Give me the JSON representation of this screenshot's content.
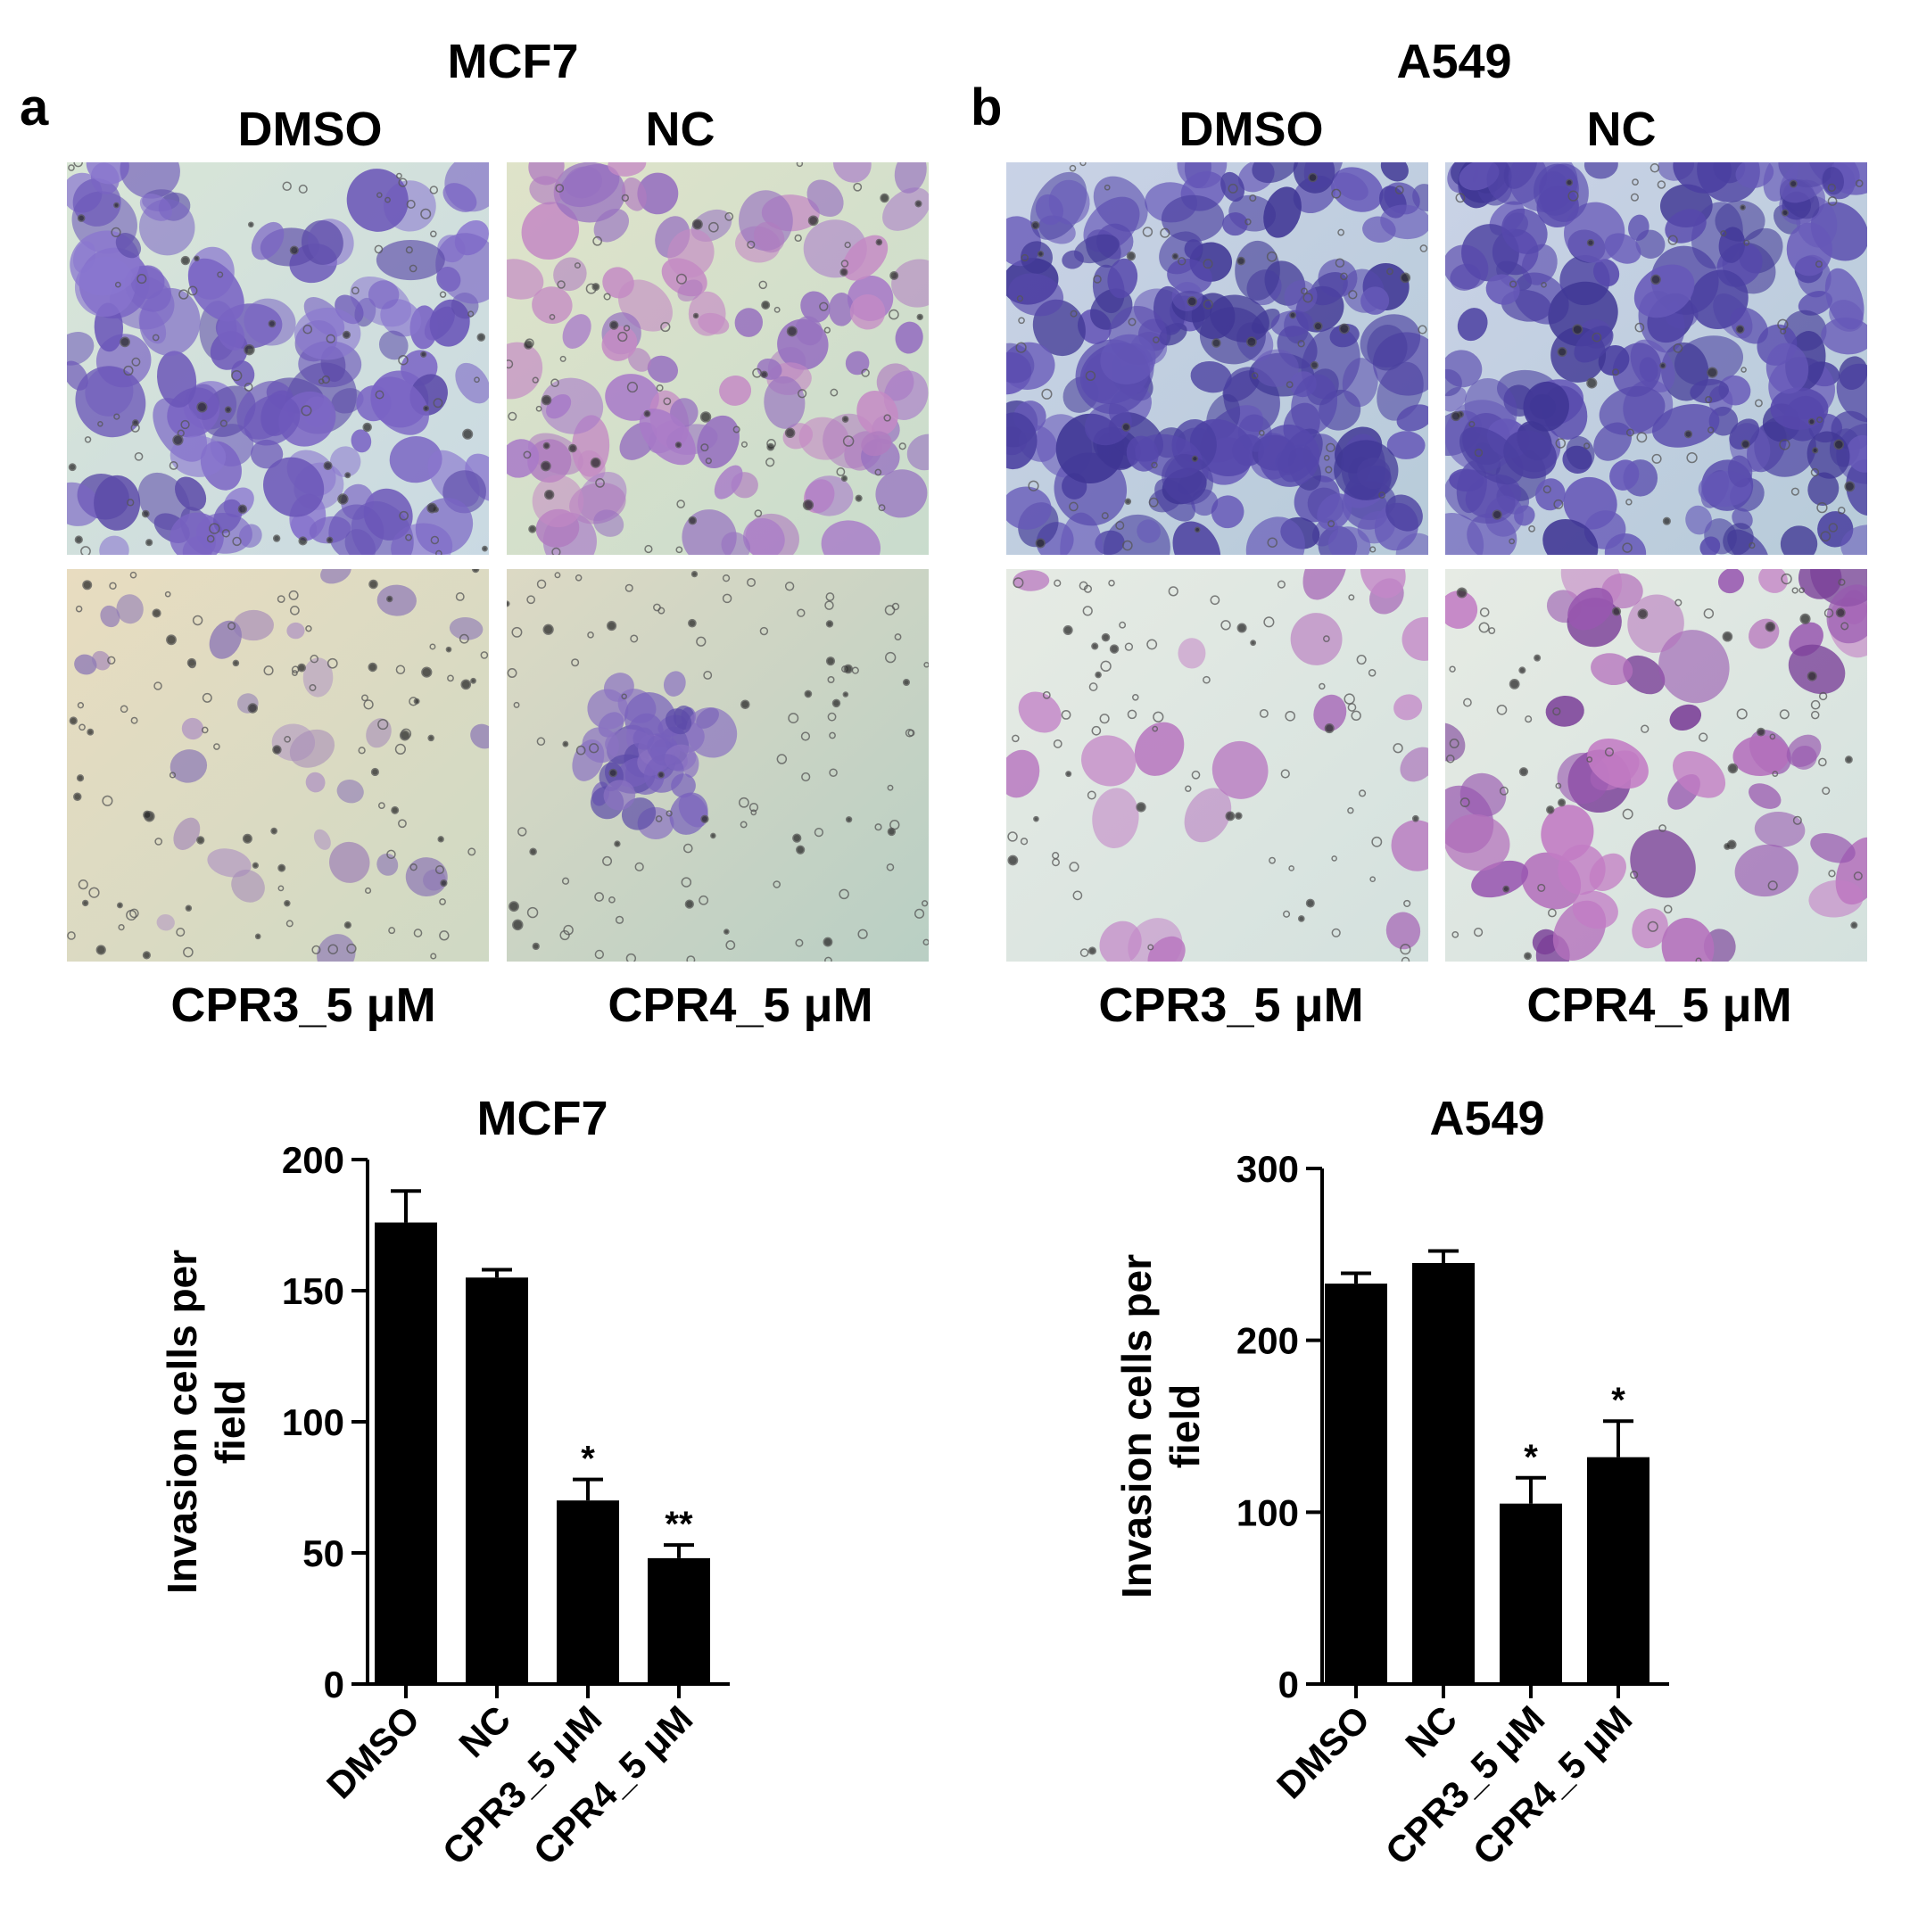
{
  "panel_a": {
    "letter": "a",
    "cell_line": "MCF7",
    "conditions_top": [
      "DMSO",
      "NC"
    ],
    "conditions_bottom": [
      "CPR3_5 μM",
      "CPR4_5 μM"
    ]
  },
  "panel_b": {
    "letter": "b",
    "cell_line": "A549",
    "conditions_top": [
      "DMSO",
      "NC"
    ],
    "conditions_bottom": [
      "CPR3_5 μM",
      "CPR4_5 μM"
    ]
  },
  "chart_data": [
    {
      "type": "bar",
      "title": "MCF7",
      "ylabel": "Invasion cells per field",
      "ylabel_lines": [
        "Invasion cells per",
        "field"
      ],
      "categories": [
        "DMSO",
        "NC",
        "CPR3_5 μM",
        "CPR4_5 μM"
      ],
      "values": [
        176,
        155,
        70,
        48
      ],
      "errors": [
        12,
        3,
        8,
        5
      ],
      "annotations": [
        "",
        "",
        "*",
        "**"
      ],
      "yticks": [
        0,
        50,
        100,
        150,
        200
      ],
      "ylim": [
        0,
        200
      ],
      "bar_color": "#000000",
      "grid": false
    },
    {
      "type": "bar",
      "title": "A549",
      "ylabel": "Invasion cells per field",
      "ylabel_lines": [
        "Invasion cells per",
        "field"
      ],
      "categories": [
        "DMSO",
        "NC",
        "CPR3_5 μM",
        "CPR4_5 μM"
      ],
      "values": [
        233,
        245,
        105,
        132
      ],
      "errors": [
        6,
        7,
        15,
        21
      ],
      "annotations": [
        "",
        "",
        "*",
        "*"
      ],
      "yticks": [
        0,
        100,
        200,
        300
      ],
      "ylim": [
        0,
        300
      ],
      "bar_color": "#000000",
      "grid": false
    }
  ]
}
